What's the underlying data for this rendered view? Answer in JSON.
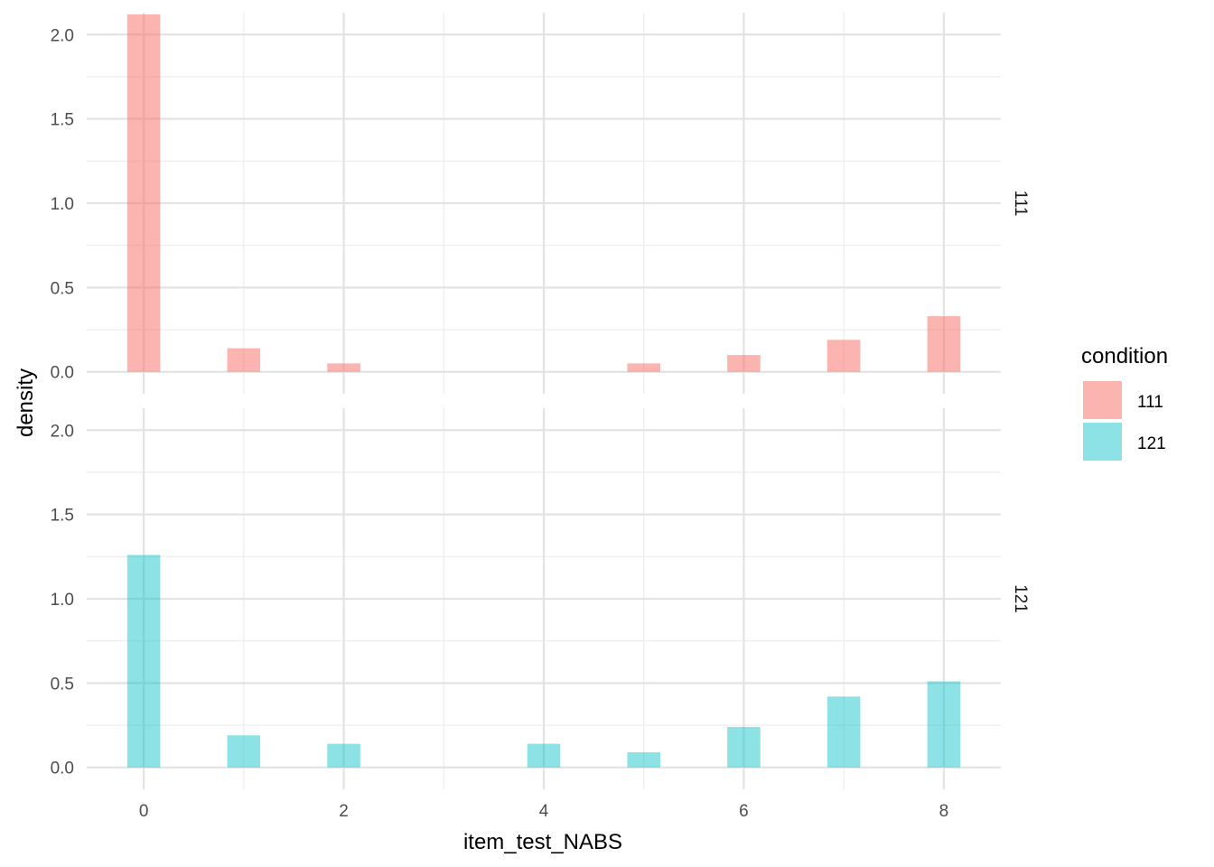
{
  "chart_data": {
    "type": "bar",
    "xlabel": "item_test_NABS",
    "ylabel": "density",
    "xlim": [
      -0.57,
      8.57
    ],
    "ylim": [
      -0.13,
      2.13
    ],
    "x_ticks": [
      0,
      2,
      4,
      6,
      8
    ],
    "x_tick_labels": [
      "0",
      "2",
      "4",
      "6",
      "8"
    ],
    "y_ticks": [
      0.0,
      0.5,
      1.0,
      1.5,
      2.0
    ],
    "y_tick_labels": [
      "0.0",
      "0.5",
      "1.0",
      "1.5",
      "2.0"
    ],
    "grid": true,
    "bar_width": 0.33,
    "legend": {
      "title": "condition",
      "position": "right",
      "entries": [
        {
          "label": "111",
          "color": "#F8766D"
        },
        {
          "label": "121",
          "color": "#00BFC4"
        }
      ]
    },
    "facets": [
      {
        "label": "111",
        "color": "#F8766D",
        "x": [
          0,
          1,
          2,
          3,
          4,
          5,
          6,
          7,
          8
        ],
        "values": [
          2.12,
          0.14,
          0.05,
          0,
          0,
          0.05,
          0.1,
          0.19,
          0.33
        ]
      },
      {
        "label": "121",
        "color": "#00BFC4",
        "x": [
          0,
          1,
          2,
          3,
          4,
          5,
          6,
          7,
          8
        ],
        "values": [
          1.26,
          0.19,
          0.14,
          0,
          0.14,
          0.09,
          0.24,
          0.42,
          0.51
        ]
      }
    ]
  }
}
